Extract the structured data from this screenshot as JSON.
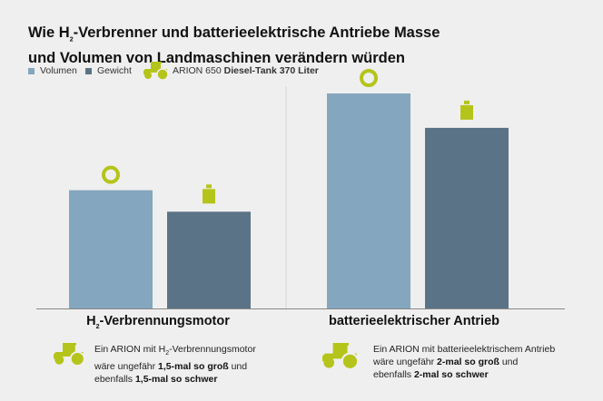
{
  "title_parts": [
    "Wie H",
    "2",
    "-Verbrenner und batterieelektrische Antriebe Masse und Volumen von Landmaschinen verändern würden"
  ],
  "legend": {
    "volumen": "Volumen",
    "gewicht": "Gewicht",
    "tractor_label": "ARION 650",
    "tractor_bold": "Diesel-Tank 370 Liter"
  },
  "colors": {
    "volumen": "#84a6bf",
    "gewicht": "#5b7386",
    "accent": "#b5c41a",
    "background": "#efefef"
  },
  "icons": {
    "volumen": "circle-icon",
    "gewicht": "weight-icon",
    "tractor": "tractor-icon"
  },
  "chart_data": {
    "type": "bar",
    "categories": [
      "H2-Verbrennungsmotor",
      "batterieelektrischer Antrieb"
    ],
    "series": [
      {
        "name": "Volumen",
        "values": [
          55,
          100
        ]
      },
      {
        "name": "Gewicht",
        "values": [
          45,
          84
        ]
      }
    ],
    "ylim": [
      0,
      100
    ],
    "grid": false,
    "legend": "top-left"
  },
  "categories": {
    "h2_parts": [
      "H",
      "2",
      "-Verbrennungsmotor"
    ],
    "battery": "batterieelektrischer Antrieb"
  },
  "notes": {
    "h2": {
      "l1a": "Ein ARION mit H",
      "l1sub": "2",
      "l1b": "-Verbrennungsmotor",
      "l2a": "wäre ungefähr ",
      "l2b": "1,5-mal so groß",
      "l2c": " und",
      "l3a": "ebenfalls ",
      "l3b": "1,5-mal so schwer"
    },
    "battery": {
      "l1": "Ein ARION mit batterieelektrischem Antrieb",
      "l2a": "wäre ungefähr ",
      "l2b": "2-mal so groß",
      "l2c": " und",
      "l3a": "ebenfalls ",
      "l3b": "2-mal so schwer"
    }
  }
}
